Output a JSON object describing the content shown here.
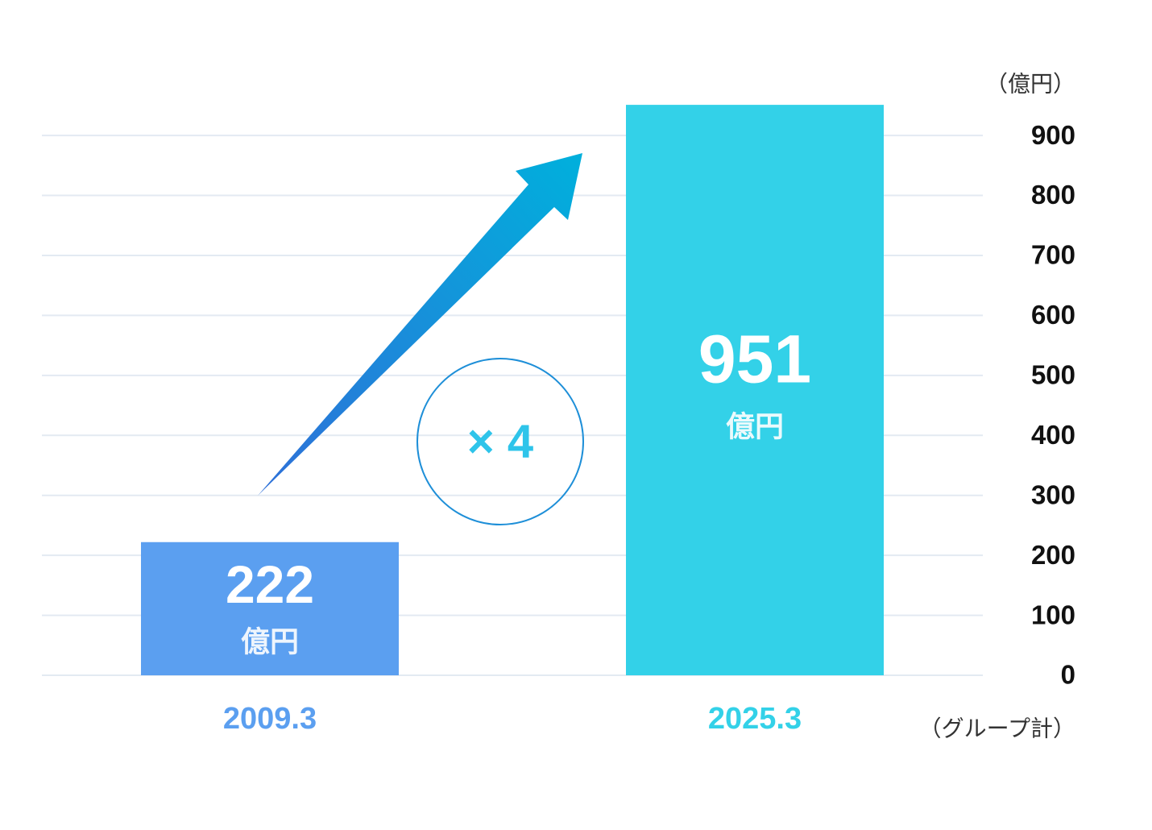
{
  "chart_data": {
    "type": "bar",
    "categories": [
      "2009.3",
      "2025.3"
    ],
    "values": [
      222,
      951
    ],
    "colors": [
      "#5b9ff0",
      "#33d1e8"
    ],
    "value_unit": "億円",
    "y_axis_unit": "（億円）",
    "footnote": "（グループ計）",
    "annotation": "× 4",
    "ylim": [
      0,
      960
    ],
    "yticks": [
      0,
      100,
      200,
      300,
      400,
      500,
      600,
      700,
      800,
      900
    ],
    "grid": true
  }
}
